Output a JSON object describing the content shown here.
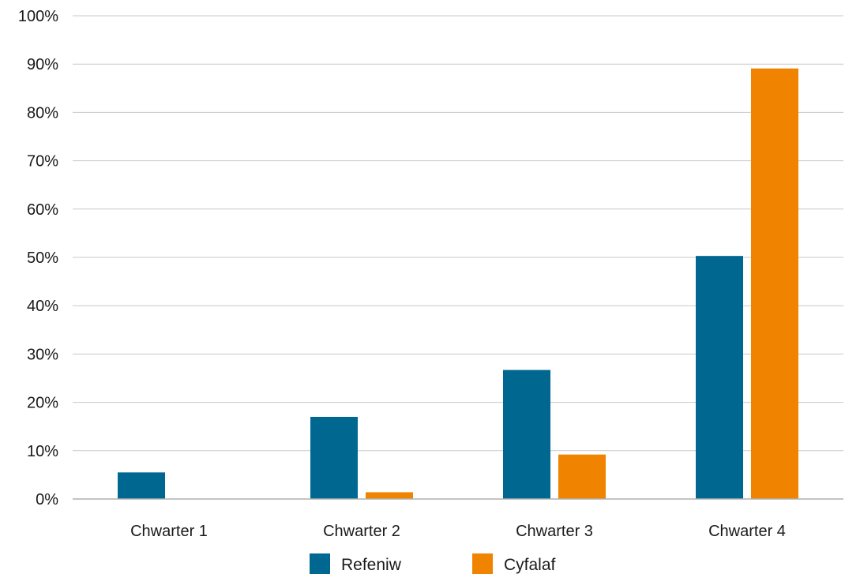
{
  "chart_data": {
    "type": "bar",
    "categories": [
      "Chwarter 1",
      "Chwarter 2",
      "Chwarter 3",
      "Chwarter 4"
    ],
    "series": [
      {
        "name": "Refeniw",
        "values": [
          5.5,
          17,
          26.7,
          50.3
        ],
        "color": "#006890"
      },
      {
        "name": "Cyfalaf",
        "values": [
          0,
          1.4,
          9.2,
          89.1
        ],
        "color": "#f08400"
      }
    ],
    "ylim": [
      0,
      100
    ],
    "yticks": [
      0,
      10,
      20,
      30,
      40,
      50,
      60,
      70,
      80,
      90,
      100
    ],
    "ytick_labels": [
      "0%",
      "10%",
      "20%",
      "30%",
      "40%",
      "50%",
      "60%",
      "70%",
      "80%",
      "90%",
      "100%"
    ],
    "grid": true,
    "legend_position": "bottom",
    "title": "",
    "xlabel": "",
    "ylabel": ""
  }
}
